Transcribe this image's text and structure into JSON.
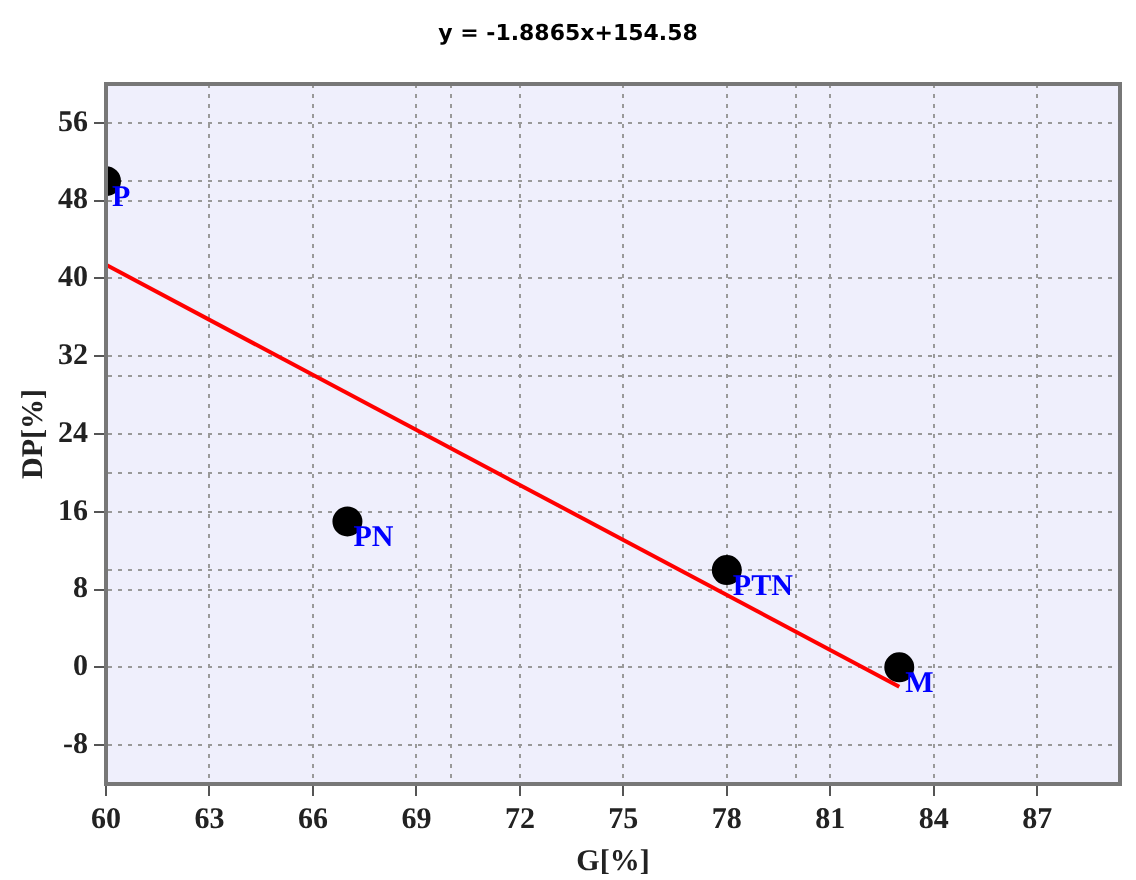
{
  "chart_data": {
    "type": "scatter",
    "title": "y = -1.8865x+154.58",
    "xlabel": "G[%]",
    "ylabel": "DP[%]",
    "xlim": [
      60,
      89.4
    ],
    "ylim": [
      -12,
      60
    ],
    "xticks": [
      60,
      63,
      66,
      69,
      {
        "value": 70,
        "label": null
      },
      72,
      75,
      78,
      {
        "value": 80,
        "label": null
      },
      81,
      84,
      87
    ],
    "yticks": [
      -8,
      0,
      8,
      {
        "value": 10,
        "label": null
      },
      16,
      {
        "value": 20,
        "label": null
      },
      24,
      {
        "value": 30,
        "label": null
      },
      32,
      40,
      48,
      {
        "value": 50,
        "label": null
      },
      56
    ],
    "grid": true,
    "legend": false,
    "marker": "circle",
    "series": [
      {
        "color": "#000000",
        "x": [
          60,
          67,
          78,
          83
        ],
        "values": [
          50,
          15,
          10,
          0
        ]
      },
      {
        "type": "line",
        "color": "#ff0000",
        "x": [
          60,
          83
        ],
        "values": [
          41.4,
          -2.0
        ],
        "marker": "none",
        "line_style": "solid"
      }
    ],
    "annotations": [
      {
        "text": "P",
        "x": 60,
        "y": 50
      },
      {
        "text": "PN",
        "x": 67,
        "y": 15
      },
      {
        "text": "PTN",
        "x": 78,
        "y": 10
      },
      {
        "text": "M",
        "x": 83,
        "y": 0
      }
    ]
  }
}
